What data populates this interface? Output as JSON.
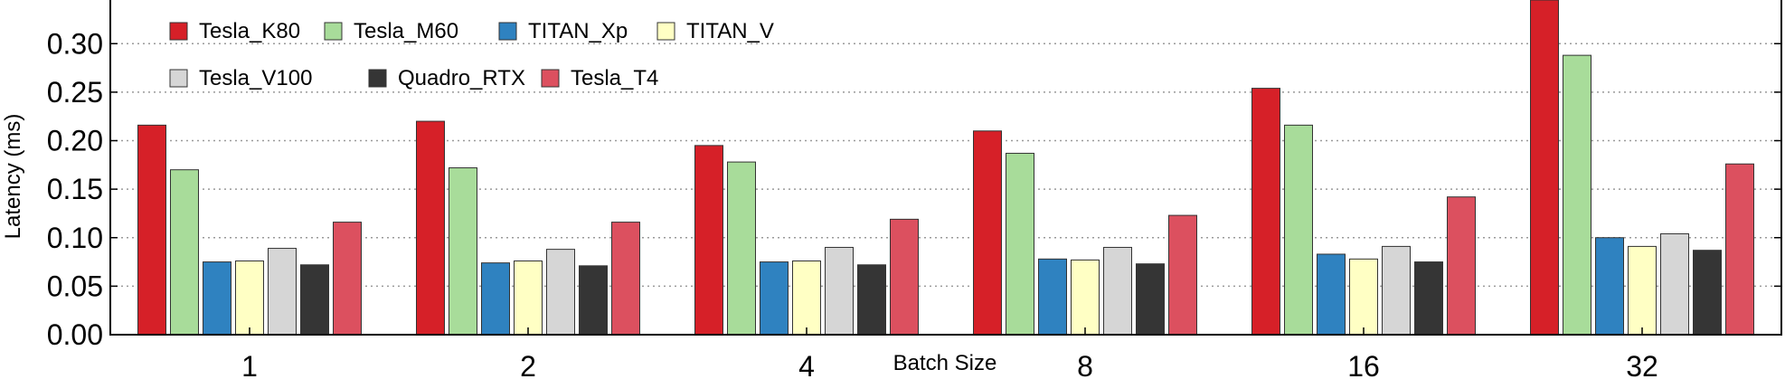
{
  "chart_data": {
    "type": "bar",
    "title": "",
    "xlabel": "Batch Size",
    "ylabel": "Latency (ms)",
    "categories": [
      "1",
      "2",
      "4",
      "8",
      "16",
      "32"
    ],
    "ylim": [
      0,
      0.345
    ],
    "yticks": [
      "0.00",
      "0.05",
      "0.10",
      "0.15",
      "0.20",
      "0.25",
      "0.30"
    ],
    "ytick_values": [
      0,
      0.05,
      0.1,
      0.15,
      0.2,
      0.25,
      0.3
    ],
    "grid": "horizontal dotted",
    "legend_placement": "top-left",
    "series": [
      {
        "name": "Tesla_K80",
        "color": "#d62028",
        "values": [
          0.216,
          0.22,
          0.195,
          0.21,
          0.254,
          0.345
        ]
      },
      {
        "name": "Tesla_M60",
        "color": "#a8dc9a",
        "values": [
          0.17,
          0.172,
          0.178,
          0.187,
          0.216,
          0.288
        ]
      },
      {
        "name": "TITAN_Xp",
        "color": "#2f82c0",
        "values": [
          0.075,
          0.074,
          0.075,
          0.078,
          0.083,
          0.1
        ]
      },
      {
        "name": "TITAN_V",
        "color": "#ffffc4",
        "values": [
          0.076,
          0.076,
          0.076,
          0.077,
          0.078,
          0.091
        ]
      },
      {
        "name": "Tesla_V100",
        "color": "#d6d6d6",
        "values": [
          0.089,
          0.088,
          0.09,
          0.09,
          0.091,
          0.104
        ]
      },
      {
        "name": "Quadro_RTX",
        "color": "#353535",
        "values": [
          0.072,
          0.071,
          0.072,
          0.073,
          0.075,
          0.087
        ]
      },
      {
        "name": "Tesla_T4",
        "color": "#dc505f",
        "values": [
          0.116,
          0.116,
          0.119,
          0.123,
          0.142,
          0.176
        ]
      }
    ]
  }
}
